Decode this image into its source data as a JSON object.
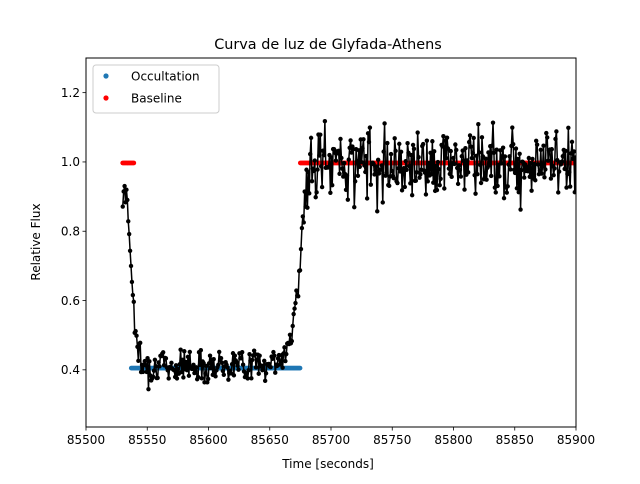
{
  "chart_data": {
    "type": "line",
    "title": "Curva de luz de Glyfada-Athens",
    "xlabel": "Time [seconds]",
    "ylabel": "Relative Flux",
    "xlim": [
      85500,
      85900
    ],
    "ylim": [
      0.235,
      1.3
    ],
    "xticks": [
      85500,
      85550,
      85600,
      85650,
      85700,
      85750,
      85800,
      85850,
      85900
    ],
    "yticks": [
      0.4,
      0.6,
      0.8,
      1.0,
      1.2
    ],
    "ytick_decimals": 1,
    "grid": false,
    "legend_position": "upper-left",
    "colors": {
      "lightcurve": "#000000",
      "occultation": "#1f77b4",
      "baseline": "#ff0000"
    },
    "lightcurve": {
      "name": "",
      "x_start": 85530,
      "x_step": 0.75,
      "segments": [
        {
          "t": 85530,
          "f": 0.92
        },
        {
          "t": 85533,
          "f": 0.93
        },
        {
          "t": 85536,
          "f": 0.75
        },
        {
          "t": 85539,
          "f": 0.58
        },
        {
          "t": 85542,
          "f": 0.46
        },
        {
          "t": 85546,
          "f": 0.41
        },
        {
          "t": 85660,
          "f": 0.42
        },
        {
          "t": 85665,
          "f": 0.48
        },
        {
          "t": 85670,
          "f": 0.55
        },
        {
          "t": 85674,
          "f": 0.67
        },
        {
          "t": 85677,
          "f": 0.84
        },
        {
          "t": 85682,
          "f": 0.95
        },
        {
          "t": 85690,
          "f": 1.0
        },
        {
          "t": 85900,
          "f": 1.0
        }
      ],
      "noise_low": 0.045,
      "noise_high": 0.095
    },
    "series": [
      {
        "name": "Occultation",
        "marker": "dot",
        "x_range": [
          85537,
          85675
        ],
        "value": 0.405
      },
      {
        "name": "Baseline",
        "marker": "dot",
        "x_ranges": [
          [
            85530,
            85539
          ],
          [
            85675,
            85900
          ]
        ],
        "value": 0.997
      }
    ]
  }
}
